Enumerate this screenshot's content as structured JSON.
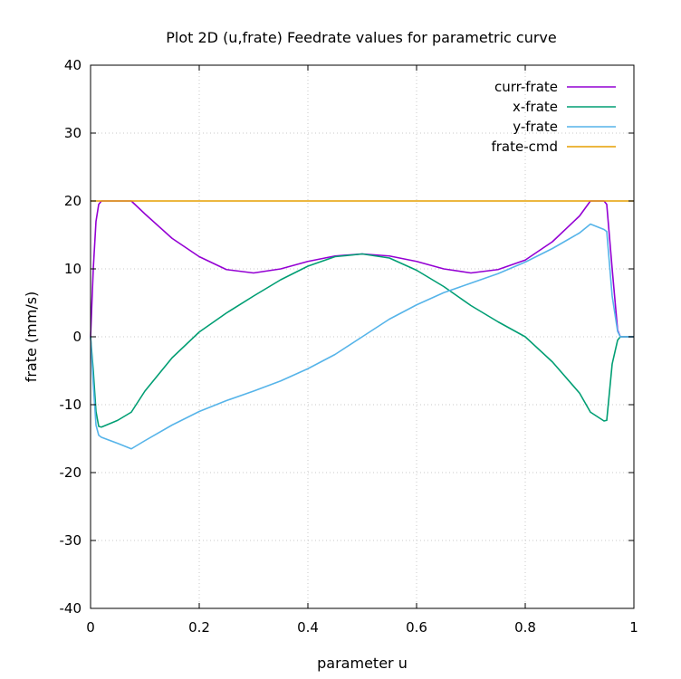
{
  "chart_data": {
    "type": "line",
    "title": "Plot 2D (u,frate) Feedrate values for parametric curve",
    "xlabel": "parameter u",
    "ylabel": "frate (mm/s)",
    "xlim": [
      0,
      1
    ],
    "ylim": [
      -40,
      40
    ],
    "x_ticks": [
      {
        "value": 0,
        "label": "0"
      },
      {
        "value": 0.2,
        "label": "0.2"
      },
      {
        "value": 0.4,
        "label": "0.4"
      },
      {
        "value": 0.6,
        "label": "0.6"
      },
      {
        "value": 0.8,
        "label": "0.8"
      },
      {
        "value": 1,
        "label": "1"
      }
    ],
    "y_ticks": [
      {
        "value": -40,
        "label": "-40"
      },
      {
        "value": -30,
        "label": "-30"
      },
      {
        "value": -20,
        "label": "-20"
      },
      {
        "value": -10,
        "label": "-10"
      },
      {
        "value": 0,
        "label": "0"
      },
      {
        "value": 10,
        "label": "10"
      },
      {
        "value": 20,
        "label": "20"
      },
      {
        "value": 30,
        "label": "30"
      },
      {
        "value": 40,
        "label": "40"
      }
    ],
    "grid": true,
    "legend_position": "top-right",
    "series": [
      {
        "name": "curr-frate",
        "color": "#9400d3",
        "points": [
          [
            0,
            0
          ],
          [
            0.005,
            10
          ],
          [
            0.01,
            17
          ],
          [
            0.015,
            19.5
          ],
          [
            0.02,
            20
          ],
          [
            0.075,
            20
          ],
          [
            0.1,
            18.1
          ],
          [
            0.15,
            14.5
          ],
          [
            0.2,
            11.8
          ],
          [
            0.25,
            9.9
          ],
          [
            0.3,
            9.4
          ],
          [
            0.35,
            10.0
          ],
          [
            0.4,
            11.1
          ],
          [
            0.45,
            11.9
          ],
          [
            0.5,
            12.2
          ],
          [
            0.55,
            11.9
          ],
          [
            0.6,
            11.1
          ],
          [
            0.65,
            10.0
          ],
          [
            0.7,
            9.4
          ],
          [
            0.75,
            9.9
          ],
          [
            0.8,
            11.3
          ],
          [
            0.85,
            14.0
          ],
          [
            0.9,
            17.8
          ],
          [
            0.92,
            20
          ],
          [
            0.945,
            20
          ],
          [
            0.95,
            19.5
          ],
          [
            0.96,
            10
          ],
          [
            0.97,
            1
          ],
          [
            0.975,
            0
          ],
          [
            1,
            0
          ]
        ]
      },
      {
        "name": "x-frate",
        "color": "#009e73",
        "points": [
          [
            0,
            0
          ],
          [
            0.005,
            -5
          ],
          [
            0.01,
            -11
          ],
          [
            0.015,
            -13.2
          ],
          [
            0.02,
            -13.3
          ],
          [
            0.05,
            -12.3
          ],
          [
            0.075,
            -11.1
          ],
          [
            0.1,
            -8
          ],
          [
            0.15,
            -3.1
          ],
          [
            0.2,
            0.7
          ],
          [
            0.25,
            3.5
          ],
          [
            0.3,
            6.0
          ],
          [
            0.35,
            8.4
          ],
          [
            0.4,
            10.4
          ],
          [
            0.45,
            11.8
          ],
          [
            0.5,
            12.2
          ],
          [
            0.55,
            11.6
          ],
          [
            0.6,
            9.8
          ],
          [
            0.65,
            7.4
          ],
          [
            0.7,
            4.6
          ],
          [
            0.75,
            2.2
          ],
          [
            0.8,
            0
          ],
          [
            0.85,
            -3.7
          ],
          [
            0.9,
            -8.3
          ],
          [
            0.92,
            -11.1
          ],
          [
            0.945,
            -12.4
          ],
          [
            0.95,
            -12.3
          ],
          [
            0.96,
            -4
          ],
          [
            0.97,
            -0.5
          ],
          [
            0.975,
            0
          ],
          [
            1,
            0
          ]
        ]
      },
      {
        "name": "y-frate",
        "color": "#56b4e9",
        "points": [
          [
            0,
            0
          ],
          [
            0.005,
            -7
          ],
          [
            0.01,
            -13
          ],
          [
            0.015,
            -14.5
          ],
          [
            0.02,
            -14.8
          ],
          [
            0.05,
            -15.7
          ],
          [
            0.075,
            -16.5
          ],
          [
            0.1,
            -15.3
          ],
          [
            0.15,
            -13
          ],
          [
            0.2,
            -11
          ],
          [
            0.25,
            -9.4
          ],
          [
            0.3,
            -8.0
          ],
          [
            0.35,
            -6.5
          ],
          [
            0.4,
            -4.7
          ],
          [
            0.45,
            -2.6
          ],
          [
            0.5,
            0
          ],
          [
            0.55,
            2.6
          ],
          [
            0.6,
            4.7
          ],
          [
            0.65,
            6.5
          ],
          [
            0.7,
            7.9
          ],
          [
            0.75,
            9.3
          ],
          [
            0.8,
            11.0
          ],
          [
            0.85,
            13.0
          ],
          [
            0.9,
            15.3
          ],
          [
            0.92,
            16.6
          ],
          [
            0.945,
            15.8
          ],
          [
            0.95,
            15.5
          ],
          [
            0.96,
            6
          ],
          [
            0.97,
            0.8
          ],
          [
            0.975,
            0
          ],
          [
            1,
            0
          ]
        ]
      },
      {
        "name": "frate-cmd",
        "color": "#e69f00",
        "points": [
          [
            0,
            20
          ],
          [
            1,
            20
          ]
        ]
      }
    ]
  }
}
